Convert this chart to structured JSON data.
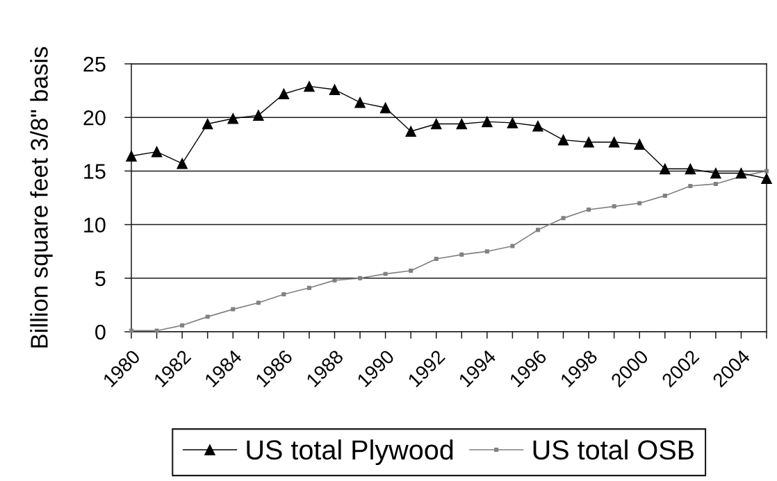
{
  "chart_data": {
    "type": "line",
    "ylabel": "Billion square feet 3/8\" basis",
    "categories": [
      "1980",
      null,
      "1982",
      null,
      "1984",
      null,
      "1986",
      null,
      "1988",
      null,
      "1990",
      null,
      "1992",
      null,
      "1994",
      null,
      "1996",
      null,
      "1998",
      null,
      "2000",
      null,
      "2002",
      null,
      "2004",
      null
    ],
    "ylim": [
      0,
      25
    ],
    "yticks": [
      0,
      5,
      10,
      15,
      20,
      25
    ],
    "grid": "y",
    "legend": "bottom",
    "line_style": "solid",
    "series": [
      {
        "name": "US total Plywood",
        "color": "#000000",
        "marker": "triangle",
        "values": [
          16.4,
          16.8,
          15.7,
          19.4,
          19.9,
          20.2,
          22.2,
          22.9,
          22.6,
          21.4,
          20.9,
          18.7,
          19.4,
          19.4,
          19.6,
          19.5,
          19.2,
          17.9,
          17.7,
          17.7,
          17.5,
          15.2,
          15.2,
          14.8,
          14.8,
          14.3
        ]
      },
      {
        "name": "US total OSB",
        "color": "#808080",
        "marker": "square",
        "values": [
          0.1,
          0.1,
          0.6,
          1.4,
          2.1,
          2.7,
          3.5,
          4.1,
          4.8,
          5.0,
          5.4,
          5.7,
          6.8,
          7.2,
          7.5,
          8.0,
          9.5,
          10.6,
          11.4,
          11.7,
          12.0,
          12.7,
          13.6,
          13.8,
          14.5,
          15.0
        ]
      }
    ]
  }
}
